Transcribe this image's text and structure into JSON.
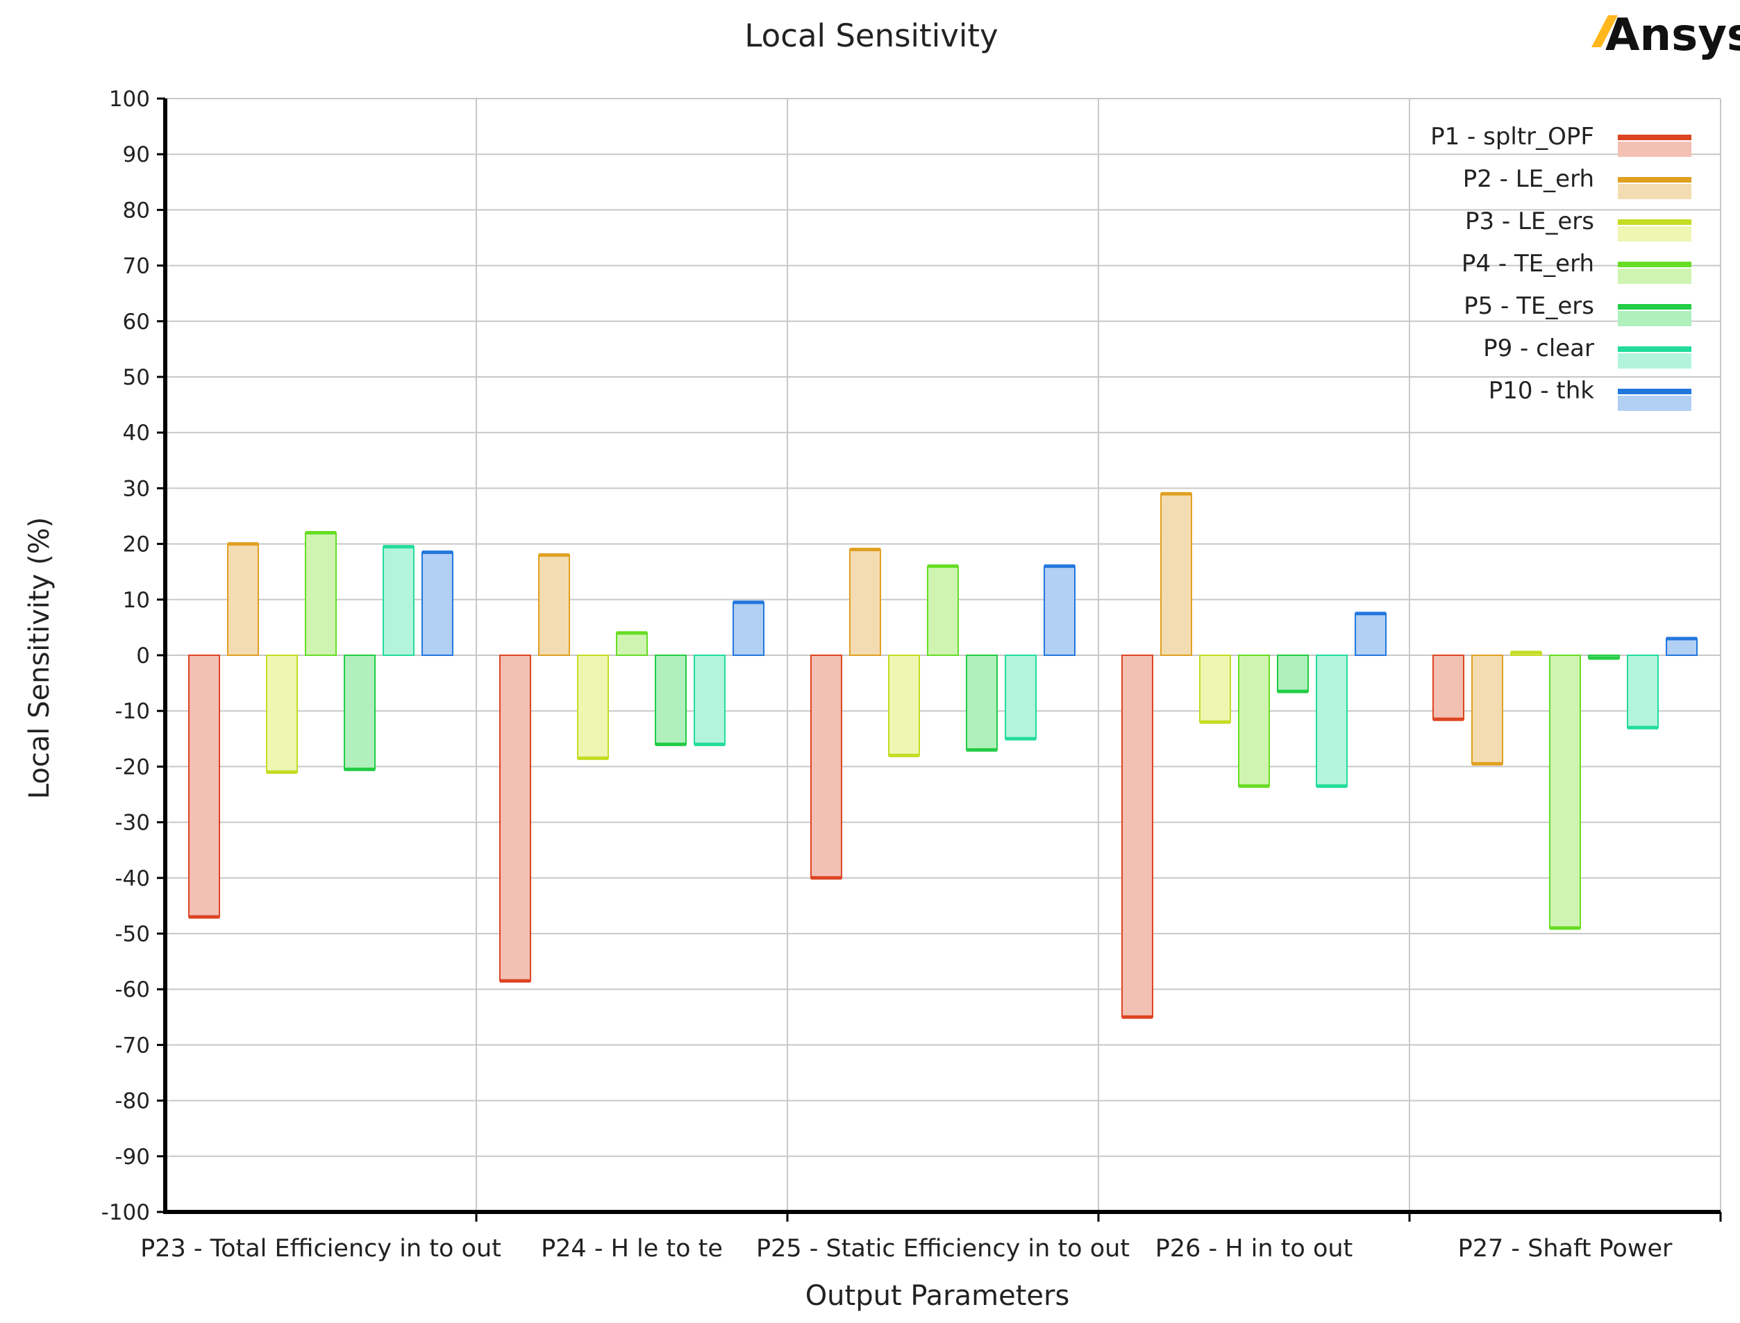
{
  "chart_data": {
    "type": "bar",
    "title": "Local Sensitivity",
    "xlabel": "Output Parameters",
    "ylabel": "Local Sensitivity (%)",
    "ylim": [
      -100,
      100
    ],
    "yticks": [
      100,
      90,
      80,
      70,
      60,
      50,
      40,
      30,
      20,
      10,
      0,
      -10,
      -20,
      -30,
      -40,
      -50,
      -60,
      -70,
      -80,
      -90,
      -100
    ],
    "ytick_labels": [
      "100",
      "90",
      "80",
      "70",
      "60",
      "50",
      "40",
      "30",
      "20",
      "10",
      "0",
      "-10",
      "-20",
      "-30",
      "-40",
      "-50",
      "-60",
      "-70",
      "-80",
      "-90",
      "-100"
    ],
    "grid": true,
    "legend_position": "top-right",
    "categories": [
      "P23 - Total Efficiency in to out",
      "P24 - H le to te",
      "P25 - Static Efficiency in to out",
      "P26 - H in to out",
      "P27 - Shaft Power"
    ],
    "series": [
      {
        "name": "P1 - spltr_OPF",
        "color": "#dd4422",
        "fill": "#f3c0b4",
        "values": [
          -47,
          -58.5,
          -40,
          -65,
          -11.5
        ]
      },
      {
        "name": "P2 - LE_erh",
        "color": "#e0a020",
        "fill": "#f4dcb2",
        "values": [
          20,
          18,
          19,
          29,
          -19.5
        ]
      },
      {
        "name": "P3 - LE_ers",
        "color": "#c4dc22",
        "fill": "#eef6b2",
        "values": [
          -21,
          -18.5,
          -18,
          -12,
          0.5
        ]
      },
      {
        "name": "P4 - TE_erh",
        "color": "#66dd22",
        "fill": "#cff4b2",
        "values": [
          22,
          4,
          16,
          -23.5,
          -49
        ]
      },
      {
        "name": "P5 - TE_ers",
        "color": "#22cc44",
        "fill": "#aff0bc",
        "values": [
          -20.5,
          -16,
          -17,
          -6.5,
          -0.5
        ]
      },
      {
        "name": "P9 - clear",
        "color": "#22dd99",
        "fill": "#b2f4dc",
        "values": [
          19.5,
          -16,
          -15,
          -23.5,
          -13
        ]
      },
      {
        "name": "P10 - thk",
        "color": "#2277dd",
        "fill": "#b2cff4",
        "values": [
          18.5,
          9.5,
          16,
          7.5,
          3
        ]
      }
    ]
  },
  "brand": {
    "logo_text": "Ansys",
    "logo_mark_color": "#ffb71b"
  }
}
